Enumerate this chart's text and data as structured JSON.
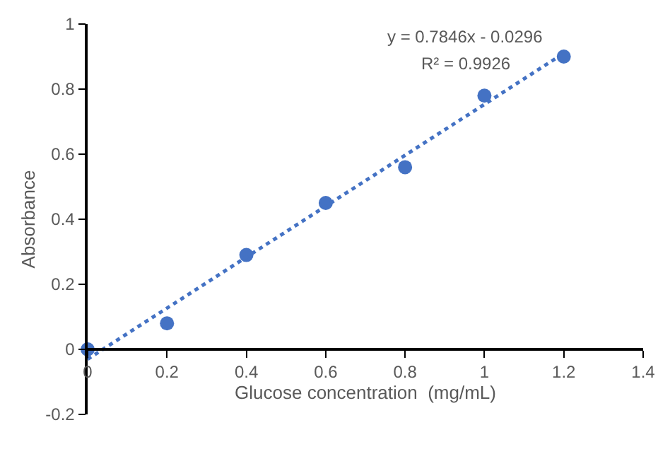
{
  "chart_data": {
    "type": "scatter",
    "xlabel": "Glucose concentration  (mg/mL)",
    "ylabel": "Absorbance",
    "x": [
      0,
      0.2,
      0.4,
      0.6,
      0.8,
      1,
      1.2
    ],
    "series": [
      {
        "color": "#4472c4",
        "values": [
          0,
          0.08,
          0.29,
          0.45,
          0.56,
          0.78,
          0.9
        ],
        "marker": "circle"
      },
      {
        "type": "line",
        "color": "#4472c4",
        "x": [
          0,
          1.2
        ],
        "values": [
          -0.03,
          0.91
        ],
        "line_style": "dotted",
        "marker": "none"
      }
    ],
    "annotations": [
      "y = 0.7846x - 0.0296",
      "R² = 0.9926"
    ],
    "xlim": [
      0,
      1.4
    ],
    "xticks": [
      0,
      0.2,
      0.4,
      0.6,
      0.8,
      1,
      1.2,
      1.4
    ],
    "ylim": [
      -0.2,
      1
    ],
    "yticks": [
      -0.2,
      0,
      0.2,
      0.4,
      0.6,
      0.8,
      1
    ]
  }
}
